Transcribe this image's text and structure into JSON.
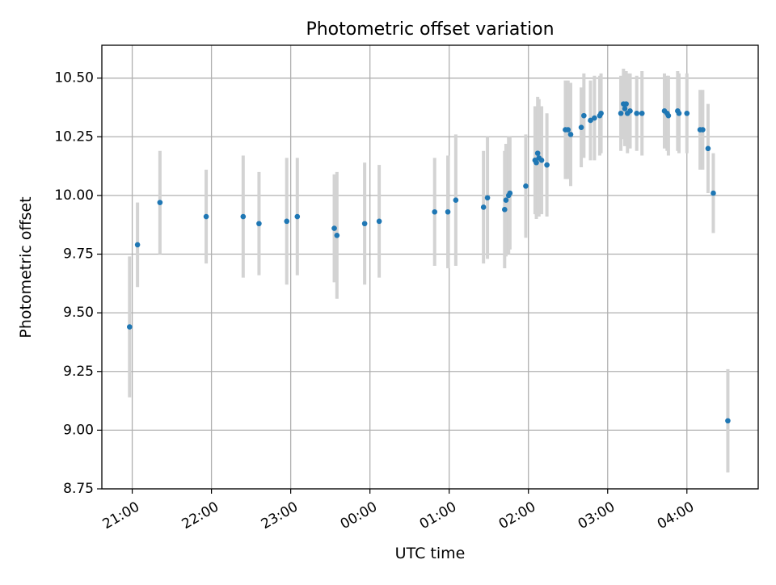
{
  "chart_data": {
    "type": "scatter",
    "title": "Photometric offset variation",
    "xlabel": "UTC time",
    "ylabel": "Photometric offset",
    "grid": true,
    "x_unit": "UTC time",
    "x_start_day": "2000-01-01",
    "xlim": [
      "20:37",
      "04:54"
    ],
    "ylim": [
      8.75,
      10.64
    ],
    "x_ticks": [
      "21:00",
      "22:00",
      "23:00",
      "00:00",
      "01:00",
      "02:00",
      "03:00",
      "04:00"
    ],
    "y_ticks": [
      "8.75",
      "9.00",
      "9.25",
      "9.50",
      "9.75",
      "10.00",
      "10.25",
      "10.50"
    ],
    "colors": {
      "point": "#1f77b4",
      "errorbar": "#d3d3d3",
      "grid": "#b0b0b0",
      "axis": "#000000"
    },
    "series": [
      {
        "x": [
          "20:58",
          "21:04",
          "21:21",
          "21:56",
          "22:24",
          "22:36",
          "22:57",
          "23:05",
          "23:33",
          "23:35",
          "23:56",
          "24:07",
          "24:49",
          "24:59",
          "25:05",
          "25:26",
          "25:29",
          "25:42",
          "25:43",
          "25:45",
          "25:46",
          "25:58",
          "26:05",
          "26:06",
          "26:07",
          "26:08",
          "26:10",
          "26:14",
          "26:28",
          "26:30",
          "26:32",
          "26:40",
          "26:42",
          "26:47",
          "26:50",
          "26:54",
          "26:55",
          "27:10",
          "27:12",
          "27:13",
          "27:14",
          "27:15",
          "27:17",
          "27:22",
          "27:26",
          "27:43",
          "27:45",
          "27:46",
          "27:53",
          "27:54",
          "28:00",
          "28:10",
          "28:12",
          "28:16",
          "28:20",
          "28:31"
        ],
        "y": [
          9.44,
          9.79,
          9.97,
          9.91,
          9.91,
          9.88,
          9.89,
          9.91,
          9.86,
          9.83,
          9.88,
          9.89,
          9.93,
          9.93,
          9.98,
          9.95,
          9.99,
          9.94,
          9.98,
          10.0,
          10.01,
          10.04,
          10.15,
          10.14,
          10.18,
          10.16,
          10.15,
          10.13,
          10.28,
          10.28,
          10.26,
          10.29,
          10.34,
          10.32,
          10.33,
          10.34,
          10.35,
          10.35,
          10.39,
          10.37,
          10.39,
          10.35,
          10.36,
          10.35,
          10.35,
          10.36,
          10.35,
          10.34,
          10.36,
          10.35,
          10.35,
          10.28,
          10.28,
          10.2,
          10.01,
          9.04
        ],
        "yerr": [
          0.3,
          0.18,
          0.22,
          0.2,
          0.26,
          0.22,
          0.27,
          0.25,
          0.23,
          0.27,
          0.26,
          0.24,
          0.23,
          0.24,
          0.28,
          0.24,
          0.26,
          0.25,
          0.24,
          0.25,
          0.24,
          0.22,
          0.23,
          0.24,
          0.24,
          0.25,
          0.23,
          0.22,
          0.21,
          0.21,
          0.22,
          0.17,
          0.18,
          0.17,
          0.18,
          0.17,
          0.17,
          0.16,
          0.15,
          0.16,
          0.14,
          0.17,
          0.16,
          0.16,
          0.18,
          0.16,
          0.16,
          0.17,
          0.17,
          0.17,
          0.17,
          0.17,
          0.17,
          0.19,
          0.17,
          0.22
        ]
      }
    ]
  }
}
